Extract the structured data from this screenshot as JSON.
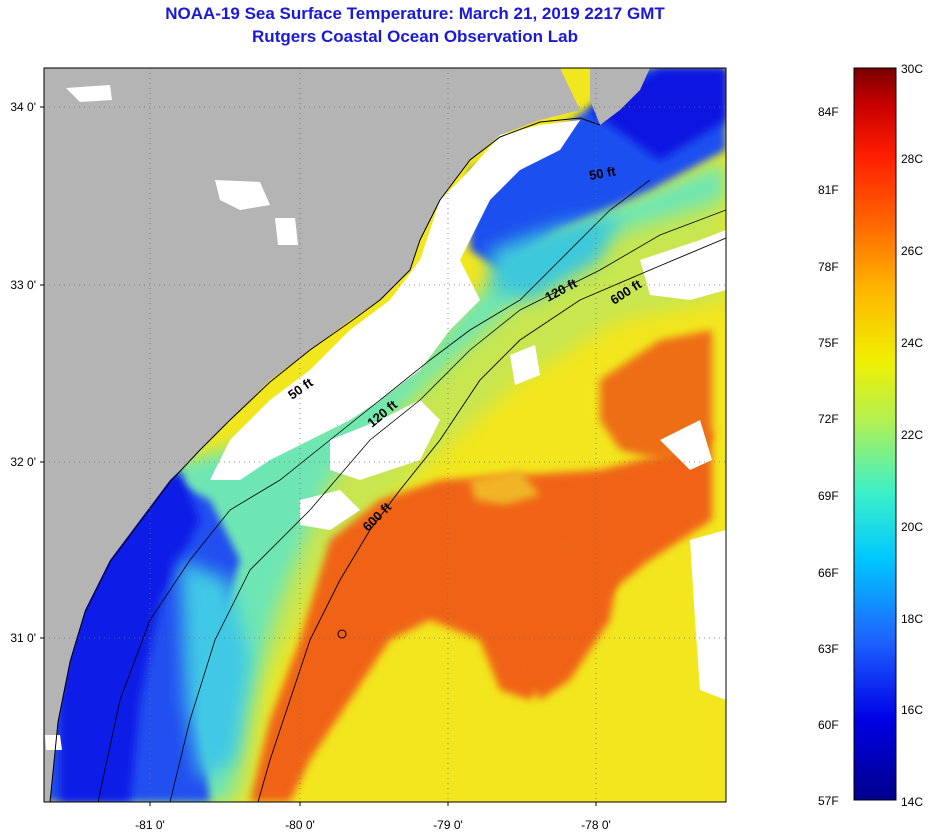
{
  "header": {
    "title": "NOAA-19 Sea Surface Temperature:  March 21, 2019 2217 GMT",
    "subtitle": "Rutgers Coastal Ocean Observation Lab"
  },
  "map": {
    "lat_labels": [
      "34 0'",
      "33 0'",
      "32 0'",
      "31 0'"
    ],
    "lon_labels": [
      "-81 0'",
      "-80 0'",
      "-79 0'",
      "-78 0'"
    ],
    "contour_labels": [
      "50 ft",
      "120 ft",
      "600 ft",
      "50 ft",
      "120 ft",
      "600 ft"
    ],
    "colors": {
      "land": "#b4b4b4",
      "cloud": "#ffffff",
      "cold": "#0a1ee6",
      "warm": "#f06414"
    }
  },
  "colorbar": {
    "fahrenheit": [
      "84F",
      "81F",
      "78F",
      "75F",
      "72F",
      "69F",
      "66F",
      "63F",
      "60F",
      "57F"
    ],
    "celsius": [
      "30C",
      "28C",
      "26C",
      "24C",
      "22C",
      "20C",
      "18C",
      "16C",
      "14C"
    ]
  }
}
